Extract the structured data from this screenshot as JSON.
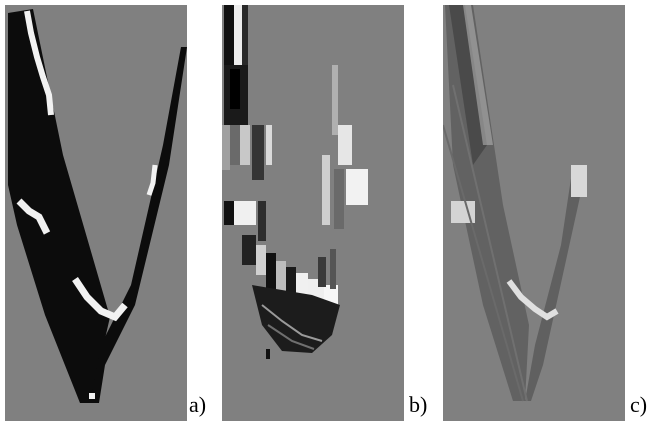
{
  "panels": [
    {
      "label": "a)"
    },
    {
      "label": "b)"
    },
    {
      "label": "c)"
    }
  ],
  "colors": {
    "background": "#808080",
    "dark": "#101010",
    "light": "#f4f4f4"
  }
}
